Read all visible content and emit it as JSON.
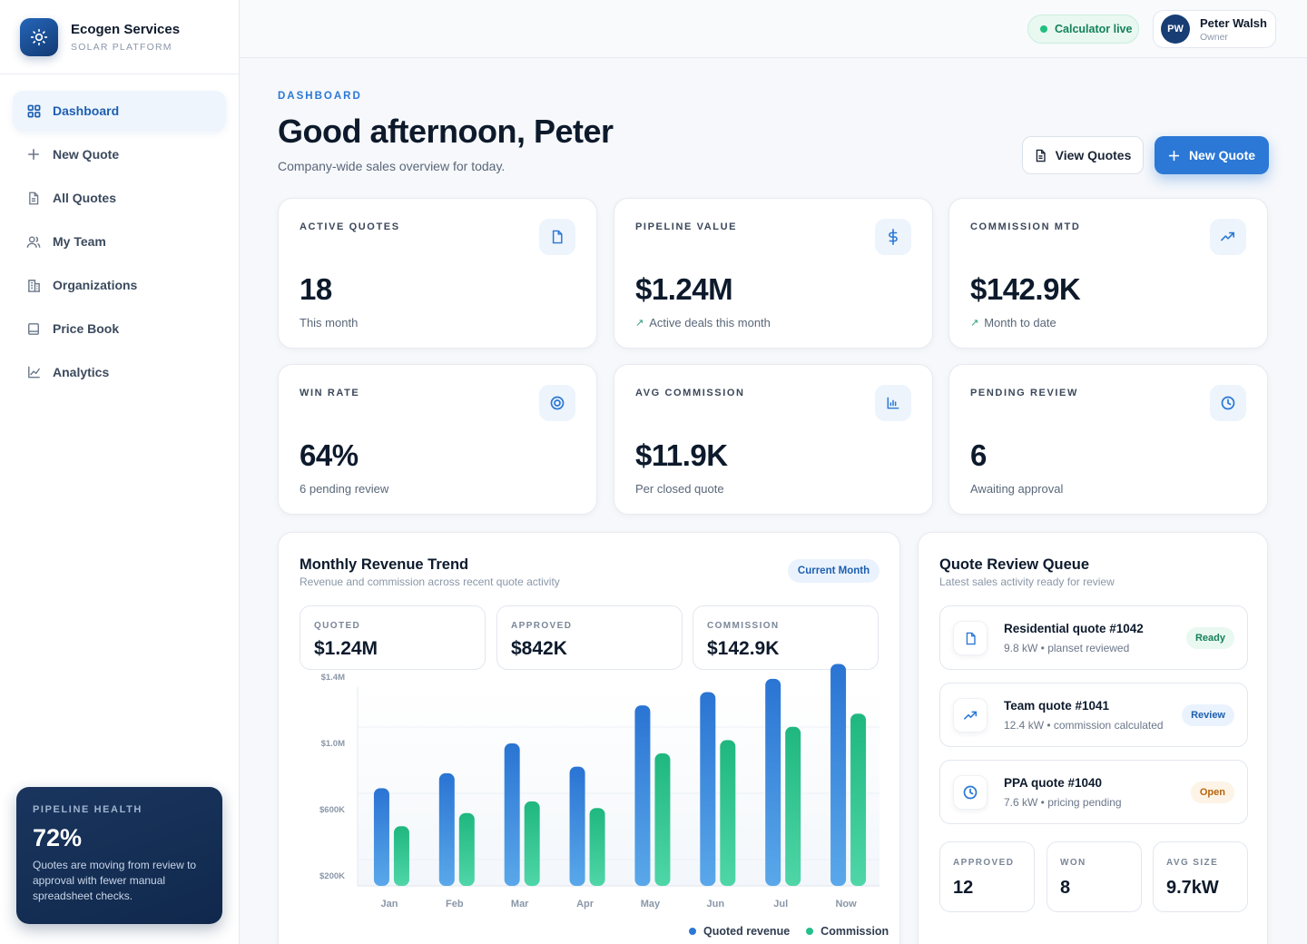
{
  "brand": {
    "name": "Ecogen Services",
    "subtitle": "SOLAR PLATFORM"
  },
  "sidebar": {
    "items": [
      {
        "label": "Dashboard",
        "icon": "grid-icon",
        "active": true
      },
      {
        "label": "New Quote",
        "icon": "plus-icon"
      },
      {
        "label": "All Quotes",
        "icon": "document-icon"
      },
      {
        "label": "My Team",
        "icon": "users-icon"
      },
      {
        "label": "Organizations",
        "icon": "building-icon"
      },
      {
        "label": "Price Book",
        "icon": "book-icon"
      },
      {
        "label": "Analytics",
        "icon": "line-chart-icon"
      }
    ],
    "health": {
      "label": "PIPELINE HEALTH",
      "value": "72%",
      "text": "Quotes are moving from review to approval with fewer manual spreadsheet checks."
    }
  },
  "header": {
    "status": "Calculator live",
    "user": {
      "initials": "PW",
      "name": "Peter Walsh",
      "role": "Owner"
    }
  },
  "page": {
    "eyebrow": "DASHBOARD",
    "title": "Good afternoon, Peter",
    "subtitle": "Company-wide sales overview for today.",
    "view_quotes_label": "View Quotes",
    "new_quote_label": "New Quote"
  },
  "stats": [
    {
      "label": "ACTIVE QUOTES",
      "value": "18",
      "note": "This month",
      "icon": "document-icon",
      "trend": false
    },
    {
      "label": "PIPELINE VALUE",
      "value": "$1.24M",
      "note": "Active deals this month",
      "icon": "dollar-icon",
      "trend": true
    },
    {
      "label": "COMMISSION MTD",
      "value": "$142.9K",
      "note": "Month to date",
      "icon": "trending-up-icon",
      "trend": true
    },
    {
      "label": "WIN RATE",
      "value": "64%",
      "note": "6 pending review",
      "icon": "target-icon",
      "trend": false
    },
    {
      "label": "AVG COMMISSION",
      "value": "$11.9K",
      "note": "Per closed quote",
      "icon": "bar-chart-icon",
      "trend": false
    },
    {
      "label": "PENDING REVIEW",
      "value": "6",
      "note": "Awaiting approval",
      "icon": "clock-icon",
      "trend": false
    }
  ],
  "revenue": {
    "title": "Monthly Revenue Trend",
    "subtitle": "Revenue and commission across recent quote activity",
    "period": "Current Month",
    "summary": [
      {
        "label": "QUOTED",
        "value": "$1.24M"
      },
      {
        "label": "APPROVED",
        "value": "$842K"
      },
      {
        "label": "COMMISSION",
        "value": "$142.9K"
      }
    ],
    "legend": {
      "quoted": "Quoted revenue",
      "commission": "Commission"
    }
  },
  "chart_data": {
    "type": "bar",
    "title": "Monthly Revenue Trend",
    "categories": [
      "Jan",
      "Feb",
      "Mar",
      "Apr",
      "May",
      "Jun",
      "Jul",
      "Now"
    ],
    "series": [
      {
        "name": "Quoted revenue",
        "color": "#2b78d6",
        "values": [
          295000,
          340000,
          430000,
          360000,
          545000,
          585000,
          625000,
          670000
        ]
      },
      {
        "name": "Commission",
        "color": "#22c08a",
        "values": [
          180000,
          220000,
          255000,
          235000,
          400000,
          440000,
          480000,
          520000
        ]
      }
    ],
    "y_ticks": [
      {
        "label": "$1.4M",
        "value": 600000
      },
      {
        "label": "$1.0M",
        "value": 400000
      },
      {
        "label": "$600K",
        "value": 200000
      },
      {
        "label": "$200K",
        "value": 0
      }
    ],
    "ylim": [
      0,
      600000
    ],
    "grid": true,
    "legend": "bottom-right"
  },
  "queue": {
    "title": "Quote Review Queue",
    "subtitle": "Latest sales activity ready for review",
    "items": [
      {
        "title": "Residential quote #1042",
        "meta": "9.8 kW • planset reviewed",
        "badge": "Ready",
        "icon": "document-icon",
        "color": "green"
      },
      {
        "title": "Team quote #1041",
        "meta": "12.4 kW • commission calculated",
        "badge": "Review",
        "icon": "trending-up-icon",
        "color": "blue"
      },
      {
        "title": "PPA quote #1040",
        "meta": "7.6 kW • pricing pending",
        "badge": "Open",
        "icon": "clock-icon",
        "color": "orange"
      }
    ],
    "stats": [
      {
        "label": "APPROVED",
        "value": "12"
      },
      {
        "label": "WON",
        "value": "8"
      },
      {
        "label": "AVG SIZE",
        "value": "9.7kW"
      }
    ]
  }
}
